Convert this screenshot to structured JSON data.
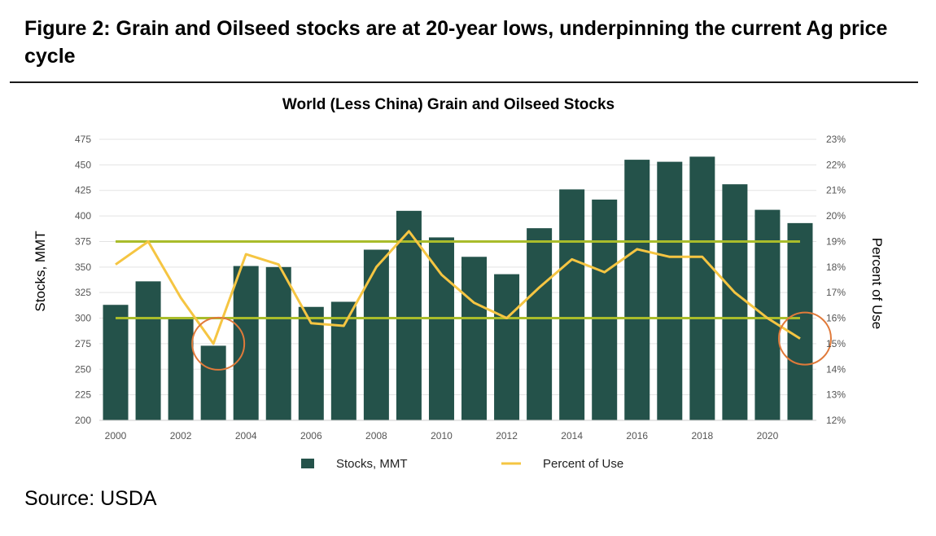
{
  "figure": {
    "title": "Figure 2: Grain and Oilseed stocks are at 20-year lows, underpinning the current Ag price cycle",
    "source": "Source: USDA"
  },
  "colors": {
    "bar": "#24524a",
    "line": "#f5c542",
    "reference": "#a9bc2b",
    "highlight": "#e07a3a",
    "axis_text": "#555555",
    "grid": "#e3e3e3"
  },
  "chart_data": {
    "type": "bar",
    "title": "World (Less China) Grain and Oilseed Stocks",
    "categories": [
      "2000",
      "2001",
      "2002",
      "2003",
      "2004",
      "2005",
      "2006",
      "2007",
      "2008",
      "2009",
      "2010",
      "2011",
      "2012",
      "2013",
      "2014",
      "2015",
      "2016",
      "2017",
      "2018",
      "2019",
      "2020",
      "2021"
    ],
    "x_tick_labels": [
      "2000",
      "2002",
      "2004",
      "2006",
      "2008",
      "2010",
      "2012",
      "2014",
      "2016",
      "2018",
      "2020"
    ],
    "ylabel": "Stocks, MMT",
    "y2label": "Percent of Use",
    "ylim": [
      200,
      475
    ],
    "y_ticks": [
      200,
      225,
      250,
      275,
      300,
      325,
      350,
      375,
      400,
      425,
      450,
      475
    ],
    "y2lim": [
      12,
      23
    ],
    "y2_ticks": [
      "12%",
      "13%",
      "14%",
      "15%",
      "16%",
      "17%",
      "18%",
      "19%",
      "20%",
      "21%",
      "22%",
      "23%"
    ],
    "series": [
      {
        "name": "Stocks, MMT",
        "type": "bar",
        "axis": "left",
        "values": [
          313,
          336,
          300,
          273,
          351,
          350,
          311,
          316,
          367,
          405,
          379,
          360,
          343,
          388,
          426,
          416,
          455,
          453,
          458,
          431,
          406,
          393
        ]
      },
      {
        "name": "Percent of Use",
        "type": "line",
        "axis": "right",
        "values": [
          18.1,
          19.0,
          16.8,
          15.0,
          18.5,
          18.1,
          15.8,
          15.7,
          18.0,
          19.4,
          17.7,
          16.6,
          16.0,
          17.2,
          18.3,
          17.8,
          18.7,
          18.4,
          18.4,
          17.0,
          16.0,
          15.2
        ]
      }
    ],
    "reference_lines": [
      {
        "axis": "left",
        "value": 375
      },
      {
        "axis": "left",
        "value": 300
      }
    ],
    "highlights": [
      {
        "category": "2003",
        "shape": "circle"
      },
      {
        "category": "2021",
        "shape": "circle"
      }
    ],
    "legend": {
      "position": "bottom",
      "entries": [
        "Stocks, MMT",
        "Percent of Use"
      ]
    },
    "grid": true
  }
}
